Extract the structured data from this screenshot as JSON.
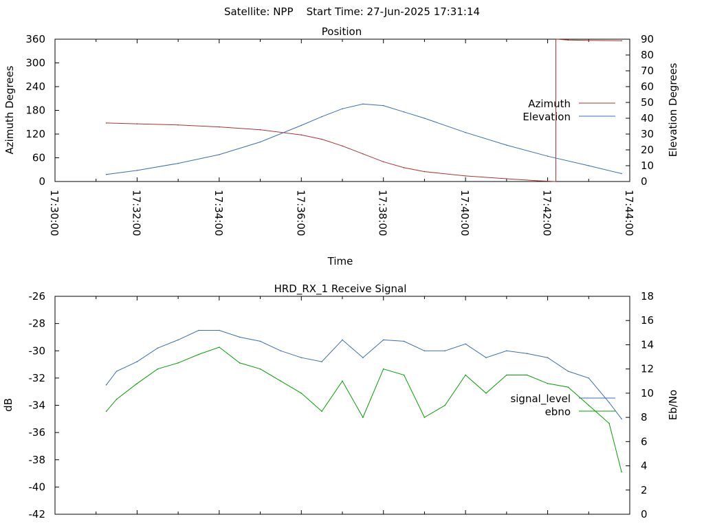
{
  "page_title": "Satellite: NPP    Start Time: 27-Jun-2025 17:31:14",
  "colors": {
    "azimuth": "#b03030",
    "elevation": "#3a6db0",
    "signal_level": "#3a6db0",
    "ebno": "#00a000",
    "axis": "#000000"
  },
  "chart_data": [
    {
      "type": "line",
      "title": "Position",
      "xlabel": "Time",
      "ylabel": "Azimuth Degrees",
      "y2label": "Elevation Degrees",
      "x_ticks": [
        "17:30:00",
        "17:32:00",
        "17:34:00",
        "17:36:00",
        "17:38:00",
        "17:40:00",
        "17:42:00",
        "17:44:00"
      ],
      "xlim_minutes": [
        0,
        14
      ],
      "ylim": [
        0,
        360
      ],
      "y_ticks": [
        "360",
        "300",
        "240",
        "180",
        "120",
        "60",
        "0"
      ],
      "y2lim": [
        0,
        90
      ],
      "y2_ticks": [
        "90",
        "80",
        "70",
        "60",
        "50",
        "40",
        "30",
        "20",
        "10",
        "0"
      ],
      "legend_position": "right",
      "series": [
        {
          "name": "Azimuth",
          "axis": "y",
          "x_minutes": [
            1.25,
            2,
            3,
            4,
            5,
            6,
            6.5,
            7,
            7.5,
            8,
            8.5,
            9,
            10,
            11,
            11.75,
            12.2,
            12.22,
            12.5,
            13,
            13.8
          ],
          "values": [
            148,
            146,
            143,
            138,
            131,
            118,
            107,
            90,
            70,
            50,
            35,
            25,
            14,
            7,
            2,
            0,
            360,
            358,
            357,
            356
          ]
        },
        {
          "name": "Elevation",
          "axis": "y2",
          "x_minutes": [
            1.25,
            2,
            3,
            4,
            5,
            6,
            6.5,
            7,
            7.5,
            8,
            8.5,
            9,
            10,
            11,
            12,
            13,
            13.8
          ],
          "values": [
            4.5,
            7,
            11.5,
            17,
            25,
            35.5,
            41,
            46,
            49,
            48,
            44,
            40,
            31,
            23,
            16,
            10,
            5
          ]
        }
      ],
      "annotations": [
        {
          "type": "vertical_line",
          "x_minutes": 12.2,
          "color": "#b03030"
        }
      ]
    },
    {
      "type": "line",
      "title": "HRD_RX_1 Receive Signal",
      "ylabel": "dB",
      "y2label": "Eb/No",
      "ylim": [
        -42,
        -26
      ],
      "y_ticks": [
        "-26",
        "-28",
        "-30",
        "-32",
        "-34",
        "-36",
        "-38",
        "-40",
        "-42"
      ],
      "y2lim": [
        0,
        18
      ],
      "y2_ticks": [
        "18",
        "16",
        "14",
        "12",
        "10",
        "8",
        "6",
        "4",
        "2",
        "0"
      ],
      "xlim_minutes": [
        0,
        14
      ],
      "legend_position": "right",
      "series": [
        {
          "name": "signal_level",
          "axis": "y",
          "x_minutes": [
            1.25,
            1.5,
            2,
            2.5,
            3,
            3.5,
            4,
            4.5,
            5,
            5.5,
            6,
            6.5,
            7,
            7.5,
            8,
            8.5,
            9,
            9.5,
            10,
            10.5,
            11,
            11.5,
            12,
            12.5,
            13,
            13.5,
            13.8
          ],
          "values": [
            -32.5,
            -31.5,
            -30.8,
            -29.8,
            -29.2,
            -28.5,
            -28.5,
            -29,
            -29.3,
            -30,
            -30.5,
            -30.8,
            -29.2,
            -30.5,
            -29.2,
            -29.3,
            -30,
            -30,
            -29.5,
            -30.5,
            -30,
            -30.2,
            -30.5,
            -31.5,
            -32,
            -33.8,
            -35
          ]
        },
        {
          "name": "ebno",
          "axis": "y2",
          "x_minutes": [
            1.25,
            1.5,
            2,
            2.5,
            3,
            3.5,
            4,
            4.5,
            5,
            5.5,
            6,
            6.5,
            7,
            7.5,
            8,
            8.5,
            9,
            9.5,
            10,
            10.5,
            11,
            11.5,
            12,
            12.5,
            13,
            13.5,
            13.8
          ],
          "values": [
            8.5,
            9.5,
            10.8,
            12,
            12.5,
            13.2,
            13.8,
            12.5,
            12,
            11,
            10,
            8.5,
            11,
            8,
            12,
            11.5,
            8,
            9,
            11.5,
            10,
            11.5,
            11.5,
            10.8,
            10.5,
            9,
            7.5,
            3.5
          ]
        }
      ]
    }
  ]
}
